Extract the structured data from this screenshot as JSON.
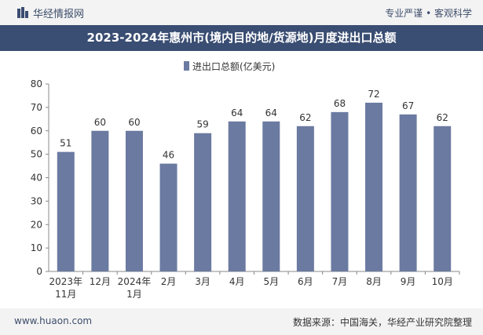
{
  "header": {
    "brand": "华经情报网",
    "tagline": "专业严谨 • 客观科学",
    "logo_icon": "bar-logo-icon"
  },
  "chart_data": {
    "type": "bar",
    "title": "2023-2024年惠州市(境内目的地/货源地)月度进出口总额",
    "categories": [
      "2023年\n11月",
      "12月",
      "2024年\n1月",
      "2月",
      "3月",
      "4月",
      "5月",
      "6月",
      "7月",
      "8月",
      "9月",
      "10月"
    ],
    "series": [
      {
        "name": "进出口总额(亿美元)",
        "values": [
          51,
          60,
          60,
          46,
          59,
          64,
          64,
          62,
          68,
          72,
          67,
          62
        ],
        "color": "#6b7aa1"
      }
    ],
    "ylim": [
      0,
      80
    ],
    "yticks": [
      0,
      10,
      20,
      30,
      40,
      50,
      60,
      70,
      80
    ],
    "grid": false,
    "legend": "top-center",
    "data_labels": true
  },
  "footer": {
    "site": "www.huaon.com",
    "source": "数据来源：中国海关，华经产业研究院整理"
  }
}
